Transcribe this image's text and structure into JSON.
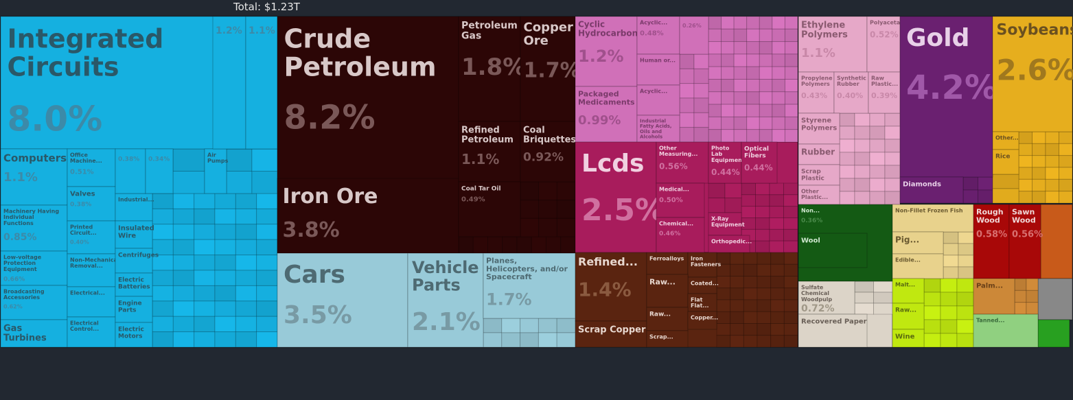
{
  "header": {
    "total_label": "Total: $1.23T"
  },
  "colors": {
    "background": "#222831",
    "electronics": "#15b0e0",
    "minerals": "#2c0606",
    "chemicals": "#d070b8",
    "transportation": "#98cad8",
    "instruments": "#a81c5c",
    "metals": "#5a2410",
    "plastics": "#e6a8c8",
    "precious_metals": "#6a2070",
    "vegetable_products": "#e6ae1e",
    "textiles": "#145a14",
    "animal_products": "#e8d28c",
    "paper": "#dcd4c8",
    "foodstuffs": "#c0e810",
    "stone": "#a80808",
    "wood": "#c85a1a",
    "animal_hides": "#cc8838",
    "misc": "#888888",
    "footwear": "#90d080",
    "weapons": "#28a020"
  },
  "chart_data": {
    "type": "treemap",
    "title": "Total: $1.23T",
    "cells": [
      {
        "label": "Integrated Circuits",
        "pct": "8.0%",
        "color": "electronics"
      },
      {
        "label": "Computers",
        "pct": "1.1%",
        "color": "electronics"
      },
      {
        "label": "Machinery Having Individual Functions",
        "pct": "0.85%",
        "color": "electronics"
      },
      {
        "label": "Low-voltage Protection Equipment",
        "pct": "0.66%",
        "color": "electronics"
      },
      {
        "label": "Broadcasting Accessories",
        "pct": "0.62%",
        "color": "electronics"
      },
      {
        "label": "Gas Turbines",
        "pct": "",
        "color": "electronics"
      },
      {
        "label": "Office Machine...",
        "pct": "0.51%",
        "color": "electronics"
      },
      {
        "label": "Valves",
        "pct": "0.38%",
        "color": "electronics"
      },
      {
        "label": "Printed Circuit...",
        "pct": "0.40%",
        "color": "electronics"
      },
      {
        "label": "Non-Mechanical Removal...",
        "pct": "",
        "color": "electronics"
      },
      {
        "label": "Electrical...",
        "pct": "",
        "color": "electronics"
      },
      {
        "label": "Electrical Control...",
        "pct": "",
        "color": "electronics"
      },
      {
        "label": "Air Pumps",
        "pct": "",
        "color": "electronics"
      },
      {
        "label": "Industrial...",
        "pct": "",
        "color": "electronics"
      },
      {
        "label": "Insulated Wire",
        "pct": "",
        "color": "electronics"
      },
      {
        "label": "Centrifuges",
        "pct": "",
        "color": "electronics"
      },
      {
        "label": "Electric Batteries",
        "pct": "",
        "color": "electronics"
      },
      {
        "label": "Engine Parts",
        "pct": "",
        "color": "electronics"
      },
      {
        "label": "Electric Motors",
        "pct": "",
        "color": "electronics"
      },
      {
        "label": "",
        "pct": "1.2%",
        "color": "electronics"
      },
      {
        "label": "",
        "pct": "1.1%",
        "color": "electronics"
      },
      {
        "label": "",
        "pct": "0.38%",
        "color": "electronics"
      },
      {
        "label": "",
        "pct": "0.34%",
        "color": "electronics"
      },
      {
        "label": "Crude Petroleum",
        "pct": "8.2%",
        "color": "minerals"
      },
      {
        "label": "Iron Ore",
        "pct": "3.8%",
        "color": "minerals"
      },
      {
        "label": "Petroleum Gas",
        "pct": "1.8%",
        "color": "minerals"
      },
      {
        "label": "Copper Ore",
        "pct": "1.7%",
        "color": "minerals"
      },
      {
        "label": "Refined Petroleum",
        "pct": "1.1%",
        "color": "minerals"
      },
      {
        "label": "Coal Briquettes",
        "pct": "0.92%",
        "color": "minerals"
      },
      {
        "label": "Coal Tar Oil",
        "pct": "0.49%",
        "color": "minerals"
      },
      {
        "label": "Cars",
        "pct": "3.5%",
        "color": "transportation"
      },
      {
        "label": "Vehicle Parts",
        "pct": "2.1%",
        "color": "transportation"
      },
      {
        "label": "Planes, Helicopters, and/or Spacecraft",
        "pct": "1.7%",
        "color": "transportation"
      },
      {
        "label": "Cyclic Hydrocarbons",
        "pct": "1.2%",
        "color": "chemicals"
      },
      {
        "label": "Packaged Medicaments",
        "pct": "0.99%",
        "color": "chemicals"
      },
      {
        "label": "Acyclic...",
        "pct": "0.48%",
        "color": "chemicals"
      },
      {
        "label": "",
        "pct": "0.26%",
        "color": "chemicals"
      },
      {
        "label": "Human or...",
        "pct": "",
        "color": "chemicals"
      },
      {
        "label": "Acyclic...",
        "pct": "",
        "color": "chemicals"
      },
      {
        "label": "Industrial Fatty Acids, Oils and Alcohols",
        "pct": "",
        "color": "chemicals"
      },
      {
        "label": "Lcds",
        "pct": "2.5%",
        "color": "instruments"
      },
      {
        "label": "Other Measuring...",
        "pct": "0.56%",
        "color": "instruments"
      },
      {
        "label": "Photo Lab Equipment",
        "pct": "0.44%",
        "color": "instruments"
      },
      {
        "label": "Optical Fibers",
        "pct": "0.44%",
        "color": "instruments"
      },
      {
        "label": "Medical...",
        "pct": "0.50%",
        "color": "instruments"
      },
      {
        "label": "Chemical...",
        "pct": "0.46%",
        "color": "instruments"
      },
      {
        "label": "X-Ray Equipment",
        "pct": "",
        "color": "instruments"
      },
      {
        "label": "Orthopedic...",
        "pct": "",
        "color": "instruments"
      },
      {
        "label": "Refined...",
        "pct": "1.4%",
        "color": "metals"
      },
      {
        "label": "Scrap Copper",
        "pct": "",
        "color": "metals"
      },
      {
        "label": "Ferroalloys",
        "pct": "",
        "color": "metals"
      },
      {
        "label": "Iron Fasteners",
        "pct": "",
        "color": "metals"
      },
      {
        "label": "Coated...",
        "pct": "",
        "color": "metals"
      },
      {
        "label": "Raw...",
        "pct": "",
        "color": "metals"
      },
      {
        "label": "Flat Flat...",
        "pct": "",
        "color": "metals"
      },
      {
        "label": "Raw...",
        "pct": "",
        "color": "metals"
      },
      {
        "label": "Copper...",
        "pct": "",
        "color": "metals"
      },
      {
        "label": "Scrap...",
        "pct": "",
        "color": "metals"
      },
      {
        "label": "Ethylene Polymers",
        "pct": "1.1%",
        "color": "plastics"
      },
      {
        "label": "Polyacetals",
        "pct": "0.52%",
        "color": "plastics"
      },
      {
        "label": "Propylene Polymers",
        "pct": "0.43%",
        "color": "plastics"
      },
      {
        "label": "Synthetic Rubber",
        "pct": "0.40%",
        "color": "plastics"
      },
      {
        "label": "Raw Plastic...",
        "pct": "0.39%",
        "color": "plastics"
      },
      {
        "label": "Styrene Polymers",
        "pct": "",
        "color": "plastics"
      },
      {
        "label": "Rubber",
        "pct": "",
        "color": "plastics"
      },
      {
        "label": "Scrap Plastic",
        "pct": "",
        "color": "plastics"
      },
      {
        "label": "Other Plastic...",
        "pct": "",
        "color": "plastics"
      },
      {
        "label": "Gold",
        "pct": "4.2%",
        "color": "precious_metals"
      },
      {
        "label": "Diamonds",
        "pct": "",
        "color": "precious_metals"
      },
      {
        "label": "Soybeans",
        "pct": "2.6%",
        "color": "vegetable_products"
      },
      {
        "label": "Other...",
        "pct": "",
        "color": "vegetable_products"
      },
      {
        "label": "Rice",
        "pct": "",
        "color": "vegetable_products"
      },
      {
        "label": "Non...",
        "pct": "0.36%",
        "color": "textiles"
      },
      {
        "label": "Wool",
        "pct": "",
        "color": "textiles"
      },
      {
        "label": "Non-Fillet Frozen Fish",
        "pct": "",
        "color": "animal_products"
      },
      {
        "label": "Pig...",
        "pct": "",
        "color": "animal_products"
      },
      {
        "label": "Edible...",
        "pct": "",
        "color": "animal_products"
      },
      {
        "label": "Sulfate Chemical Woodpulp",
        "pct": "0.72%",
        "color": "paper"
      },
      {
        "label": "Recovered Paper",
        "pct": "",
        "color": "paper"
      },
      {
        "label": "Malt...",
        "pct": "",
        "color": "foodstuffs"
      },
      {
        "label": "Raw...",
        "pct": "",
        "color": "foodstuffs"
      },
      {
        "label": "Wine",
        "pct": "",
        "color": "foodstuffs"
      },
      {
        "label": "Rough Wood",
        "pct": "0.58%",
        "color": "stone"
      },
      {
        "label": "Sawn Wood",
        "pct": "0.56%",
        "color": "stone"
      },
      {
        "label": "Palm...",
        "pct": "",
        "color": "animal_hides"
      },
      {
        "label": "Tanned...",
        "pct": "",
        "color": "footwear"
      }
    ]
  }
}
